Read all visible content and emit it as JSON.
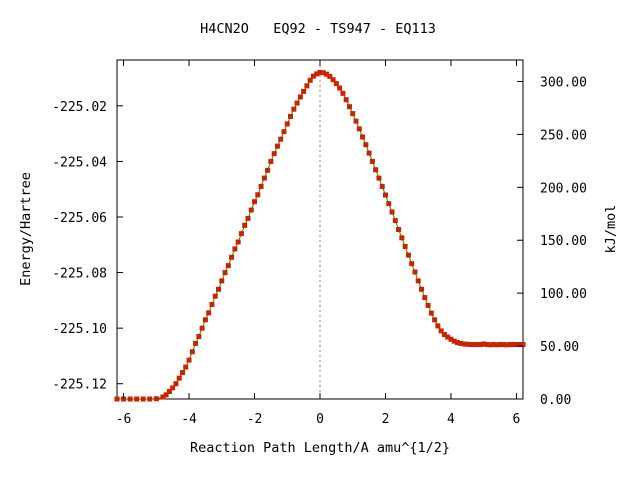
{
  "chart_data": {
    "type": "line",
    "title": "H4CN2O   EQ92 - TS947 - EQ113",
    "xlabel": "Reaction Path Length/A amu^{1/2}",
    "ylabel": "Energy/Hartree",
    "y2label": "kJ/mol",
    "xlim": [
      -6.2,
      6.2
    ],
    "ylim": [
      -225.1255,
      -225.0035
    ],
    "y2lim": [
      0.0,
      320.3
    ],
    "xticks": [
      -6,
      -4,
      -2,
      0,
      2,
      4,
      6
    ],
    "xtick_labels": [
      "-6",
      "-4",
      "-2",
      "0",
      "2",
      "4",
      "6"
    ],
    "yticks": [
      -225.12,
      -225.1,
      -225.08,
      -225.06,
      -225.04,
      -225.02
    ],
    "ytick_labels": [
      "-225.12",
      "-225.10",
      "-225.08",
      "-225.06",
      "-225.04",
      "-225.02"
    ],
    "y2ticks": [
      0,
      50,
      100,
      150,
      200,
      250,
      300
    ],
    "y2tick_labels": [
      "0.00",
      "50.00",
      "100.00",
      "150.00",
      "200.00",
      "250.00",
      "300.00"
    ],
    "transition_state_x": 0.0,
    "grid": false,
    "colors": {
      "line": "#00a000",
      "marker": "#cc2200",
      "ts_line": "#888888",
      "axis": "#000000"
    },
    "series": [
      {
        "x": [
          -6.2,
          -6.0,
          -5.8,
          -5.6,
          -5.4,
          -5.2,
          -5.0,
          -4.8,
          -4.7,
          -4.6,
          -4.5,
          -4.4,
          -4.3,
          -4.2,
          -4.1,
          -4.0,
          -3.9,
          -3.8,
          -3.7,
          -3.6,
          -3.5,
          -3.4,
          -3.3,
          -3.2,
          -3.1,
          -3.0,
          -2.9,
          -2.8,
          -2.7,
          -2.6,
          -2.5,
          -2.4,
          -2.3,
          -2.2,
          -2.1,
          -2.0,
          -1.9,
          -1.8,
          -1.7,
          -1.6,
          -1.5,
          -1.4,
          -1.3,
          -1.2,
          -1.1,
          -1.0,
          -0.9,
          -0.8,
          -0.7,
          -0.6,
          -0.5,
          -0.4,
          -0.3,
          -0.2,
          -0.1,
          0.0,
          0.1,
          0.2,
          0.3,
          0.4,
          0.5,
          0.6,
          0.7,
          0.8,
          0.9,
          1.0,
          1.1,
          1.2,
          1.3,
          1.4,
          1.5,
          1.6,
          1.7,
          1.8,
          1.9,
          2.0,
          2.1,
          2.2,
          2.3,
          2.4,
          2.5,
          2.6,
          2.7,
          2.8,
          2.9,
          3.0,
          3.1,
          3.2,
          3.3,
          3.4,
          3.5,
          3.6,
          3.7,
          3.8,
          3.9,
          4.0,
          4.1,
          4.2,
          4.3,
          4.4,
          4.5,
          4.6,
          4.7,
          4.8,
          4.9,
          5.0,
          5.1,
          5.2,
          5.3,
          5.4,
          5.5,
          5.6,
          5.7,
          5.8,
          5.9,
          6.0,
          6.1,
          6.2
        ],
        "y": [
          -225.1255,
          -225.1255,
          -225.1255,
          -225.1255,
          -225.1255,
          -225.1255,
          -225.1254,
          -225.1248,
          -225.124,
          -225.1228,
          -225.1215,
          -225.12,
          -225.118,
          -225.116,
          -225.114,
          -225.1115,
          -225.1085,
          -225.1055,
          -225.103,
          -225.1,
          -225.097,
          -225.0945,
          -225.0915,
          -225.0885,
          -225.086,
          -225.083,
          -225.08,
          -225.0775,
          -225.0745,
          -225.0715,
          -225.069,
          -225.066,
          -225.063,
          -225.0605,
          -225.0575,
          -225.0545,
          -225.052,
          -225.049,
          -225.046,
          -225.0432,
          -225.04,
          -225.0372,
          -225.0345,
          -225.032,
          -225.0293,
          -225.0265,
          -225.0238,
          -225.0212,
          -225.019,
          -225.0168,
          -225.0148,
          -225.0128,
          -225.0108,
          -225.0093,
          -225.0085,
          -225.008,
          -225.0081,
          -225.0086,
          -225.0094,
          -225.0106,
          -225.012,
          -225.0136,
          -225.0155,
          -225.0178,
          -225.0203,
          -225.0228,
          -225.0255,
          -225.0283,
          -225.0312,
          -225.034,
          -225.037,
          -225.04,
          -225.043,
          -225.046,
          -225.049,
          -225.0521,
          -225.0552,
          -225.0582,
          -225.0613,
          -225.0645,
          -225.0675,
          -225.0706,
          -225.0737,
          -225.0768,
          -225.0798,
          -225.083,
          -225.086,
          -225.089,
          -225.0918,
          -225.0946,
          -225.097,
          -225.0992,
          -225.101,
          -225.1023,
          -225.1032,
          -225.104,
          -225.1047,
          -225.1052,
          -225.1055,
          -225.1057,
          -225.1058,
          -225.1059,
          -225.1059,
          -225.1059,
          -225.1059,
          -225.1057,
          -225.1059,
          -225.106,
          -225.1059,
          -225.106,
          -225.1059,
          -225.1059,
          -225.106,
          -225.1059,
          -225.1059,
          -225.1059,
          -225.1059,
          -225.1059
        ]
      }
    ]
  }
}
